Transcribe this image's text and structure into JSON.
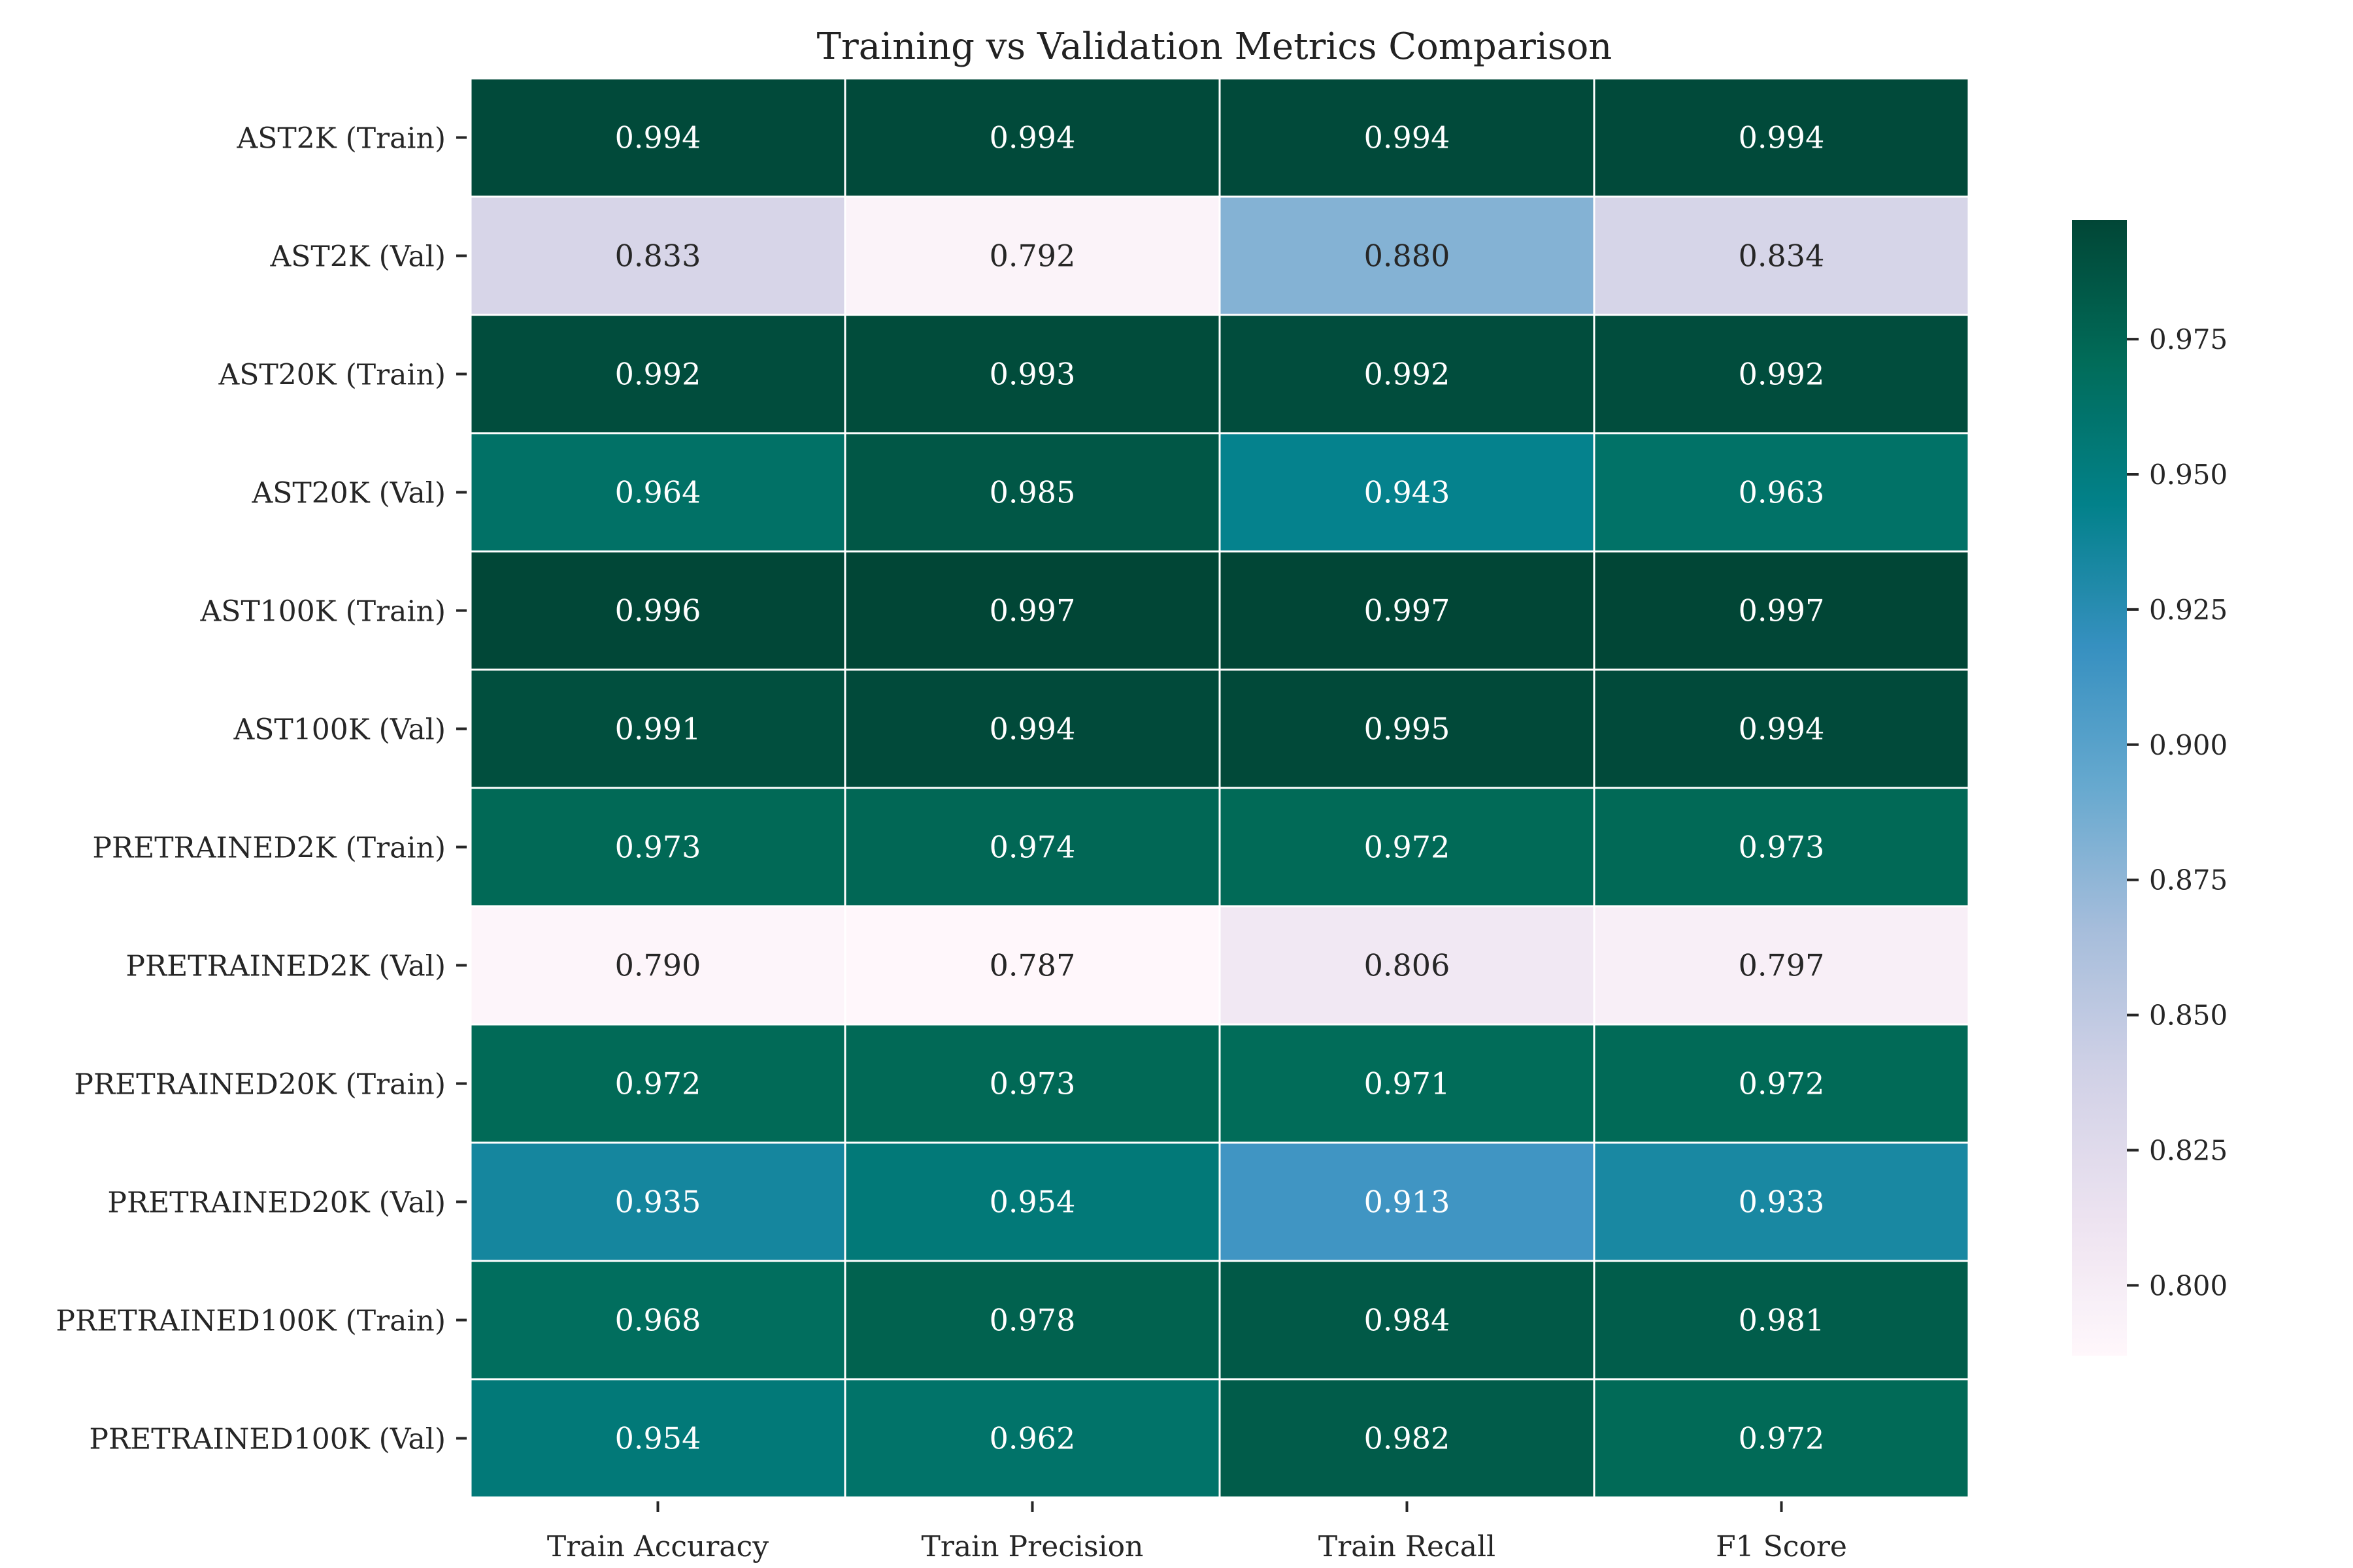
{
  "chart_data": {
    "type": "heatmap",
    "title": "Training vs Validation Metrics Comparison",
    "xlabel": "",
    "ylabel": "",
    "columns": [
      "Train Accuracy",
      "Train Precision",
      "Train Recall",
      "F1 Score"
    ],
    "rows": [
      "AST2K (Train)",
      "AST2K (Val)",
      "AST20K (Train)",
      "AST20K (Val)",
      "AST100K (Train)",
      "AST100K (Val)",
      "PRETRAINED2K (Train)",
      "PRETRAINED2K (Val)",
      "PRETRAINED20K (Train)",
      "PRETRAINED20K (Val)",
      "PRETRAINED100K (Train)",
      "PRETRAINED100K (Val)"
    ],
    "values": [
      [
        0.994,
        0.994,
        0.994,
        0.994
      ],
      [
        0.833,
        0.792,
        0.88,
        0.834
      ],
      [
        0.992,
        0.993,
        0.992,
        0.992
      ],
      [
        0.964,
        0.985,
        0.943,
        0.963
      ],
      [
        0.996,
        0.997,
        0.997,
        0.997
      ],
      [
        0.991,
        0.994,
        0.995,
        0.994
      ],
      [
        0.973,
        0.974,
        0.972,
        0.973
      ],
      [
        0.79,
        0.787,
        0.806,
        0.797
      ],
      [
        0.972,
        0.973,
        0.971,
        0.972
      ],
      [
        0.935,
        0.954,
        0.913,
        0.933
      ],
      [
        0.968,
        0.978,
        0.984,
        0.981
      ],
      [
        0.954,
        0.962,
        0.982,
        0.972
      ]
    ],
    "value_format": "3 decimals",
    "colormap": "PuBuGn",
    "vmin": 0.787,
    "vmax": 0.997,
    "colorbar": {
      "ticks": [
        0.8,
        0.825,
        0.85,
        0.875,
        0.9,
        0.925,
        0.95,
        0.975
      ],
      "tick_labels": [
        "0.800",
        "0.825",
        "0.850",
        "0.875",
        "0.900",
        "0.925",
        "0.950",
        "0.975"
      ]
    },
    "cell_separator_color": "#ffffff",
    "grid": false,
    "legend": "colorbar right"
  }
}
